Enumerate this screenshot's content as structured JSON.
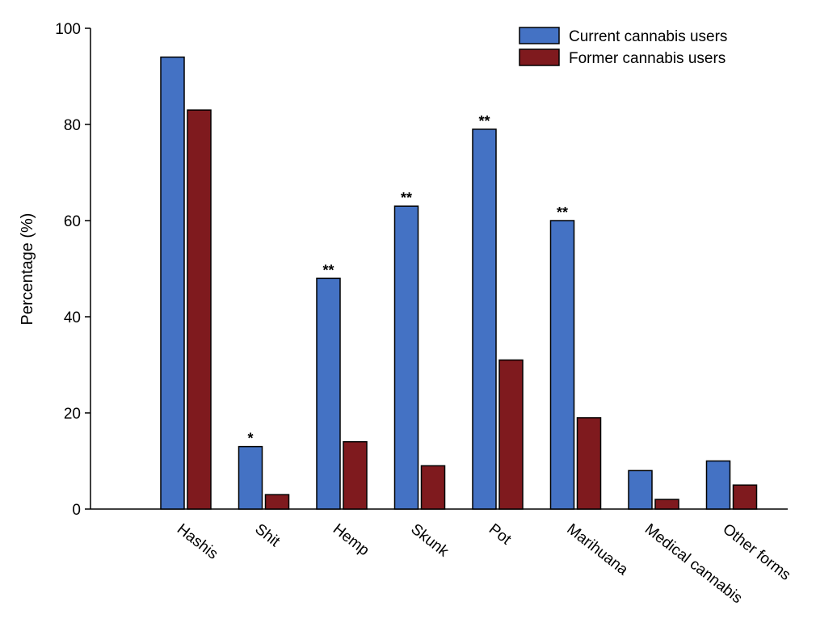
{
  "chart_data": {
    "type": "bar",
    "title": "",
    "xlabel": "",
    "ylabel": "Percentage (%)",
    "ylim": [
      0,
      100
    ],
    "yticks": [
      0,
      20,
      40,
      60,
      80,
      100
    ],
    "categories": [
      "Hashis",
      "Shit",
      "Hemp",
      "Skunk",
      "Pot",
      "Marihuana",
      "Medical cannabis",
      "Other forms"
    ],
    "series": [
      {
        "name": "Current cannabis users",
        "color": "#4472c4",
        "values": [
          94,
          13,
          48,
          63,
          79,
          60,
          8,
          10
        ]
      },
      {
        "name": "Former cannabis users",
        "color": "#7f1a1e",
        "values": [
          83,
          3,
          14,
          9,
          31,
          19,
          2,
          5
        ]
      }
    ],
    "annotations": [
      "",
      "*",
      "**",
      "**",
      "**",
      "**",
      "",
      ""
    ],
    "legend_position": "top-right",
    "grid": false
  }
}
